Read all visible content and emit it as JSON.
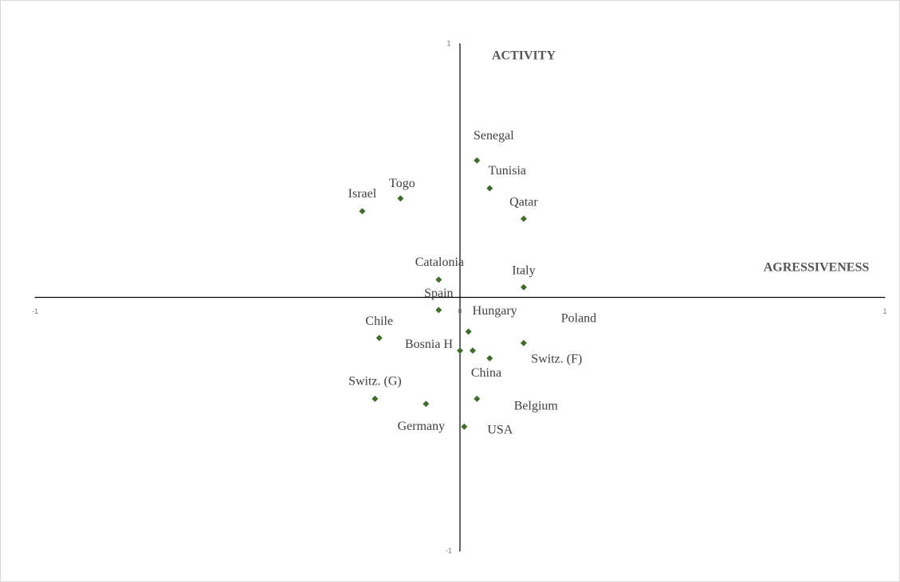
{
  "chart_data": {
    "type": "scatter",
    "x_label": "AGRESSIVENESS",
    "y_label": "ACTIVITY",
    "labels": [
      "Senegal",
      "Tunisia",
      "Qatar",
      "Togo",
      "Israel",
      "Catalonia",
      "Italy",
      "Spain",
      "Hungary",
      "Poland",
      "Chile",
      "Bosnia H",
      "China",
      "Switz. (F)",
      "Belgium",
      "Germany",
      "Switz. (G)",
      "USA"
    ],
    "x": [
      0.04,
      0.07,
      0.15,
      -0.14,
      -0.23,
      -0.05,
      0.15,
      -0.05,
      0.02,
      0.15,
      -0.19,
      0.0,
      0.03,
      0.07,
      0.04,
      -0.08,
      -0.2,
      0.01
    ],
    "values": [
      0.54,
      0.43,
      0.31,
      0.39,
      0.34,
      0.07,
      0.04,
      -0.05,
      -0.135,
      -0.18,
      -0.16,
      -0.21,
      -0.21,
      -0.24,
      -0.4,
      -0.42,
      -0.4,
      -0.51
    ],
    "color": "#3f6b2b",
    "xlim": [
      -1,
      1
    ],
    "ylim": [
      -1,
      1
    ],
    "xticks": [
      -1,
      0,
      1
    ],
    "yticks": [
      -1,
      1
    ]
  }
}
